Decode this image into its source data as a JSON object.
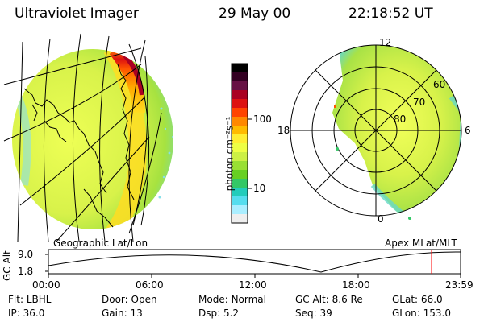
{
  "header": {
    "title": "Ultraviolet Imager",
    "date": "29 May 00",
    "time": "22:18:52 UT"
  },
  "colorbar": {
    "label": "photon cm⁻²s⁻¹",
    "ticks": [
      "100",
      "10"
    ],
    "colors": [
      "#000000",
      "#330022",
      "#661144",
      "#aa0022",
      "#dd1111",
      "#ff4400",
      "#ff8800",
      "#ffbb00",
      "#ffee33",
      "#eeff44",
      "#ccf044",
      "#99e033",
      "#66d022",
      "#33c866",
      "#22ccbb",
      "#55ddee",
      "#aaeeff",
      "#eeeeee"
    ]
  },
  "map_left": {
    "caption": "Geographic Lat/Lon"
  },
  "map_right": {
    "caption": "Apex MLat/MLT",
    "lat_labels": [
      "80",
      "70",
      "60"
    ],
    "mlt_labels": [
      "12",
      "18",
      "6",
      "0"
    ]
  },
  "timeline": {
    "axis_label": "GC Alt",
    "y_ticks": [
      "9.0",
      "1.8"
    ],
    "x_ticks": [
      "00:00",
      "06:00",
      "12:00",
      "18:00",
      "23:59"
    ],
    "marker_time": "22:18",
    "marker_color": "#ff0000"
  },
  "status": {
    "row1": [
      {
        "key": "Flt:",
        "value": "LBHL"
      },
      {
        "key": "Door:",
        "value": "Open"
      },
      {
        "key": "Mode:",
        "value": "Normal"
      },
      {
        "key": "GC Alt:",
        "value": "8.6 Re"
      },
      {
        "key": "GLat:",
        "value": "66.0"
      }
    ],
    "row2": [
      {
        "key": "IP:",
        "value": "36.0"
      },
      {
        "key": "Gain:",
        "value": "13"
      },
      {
        "key": "Dsp:",
        "value": "5.2"
      },
      {
        "key": "Seq:",
        "value": "39"
      },
      {
        "key": "GLon:",
        "value": "153.0"
      }
    ]
  }
}
